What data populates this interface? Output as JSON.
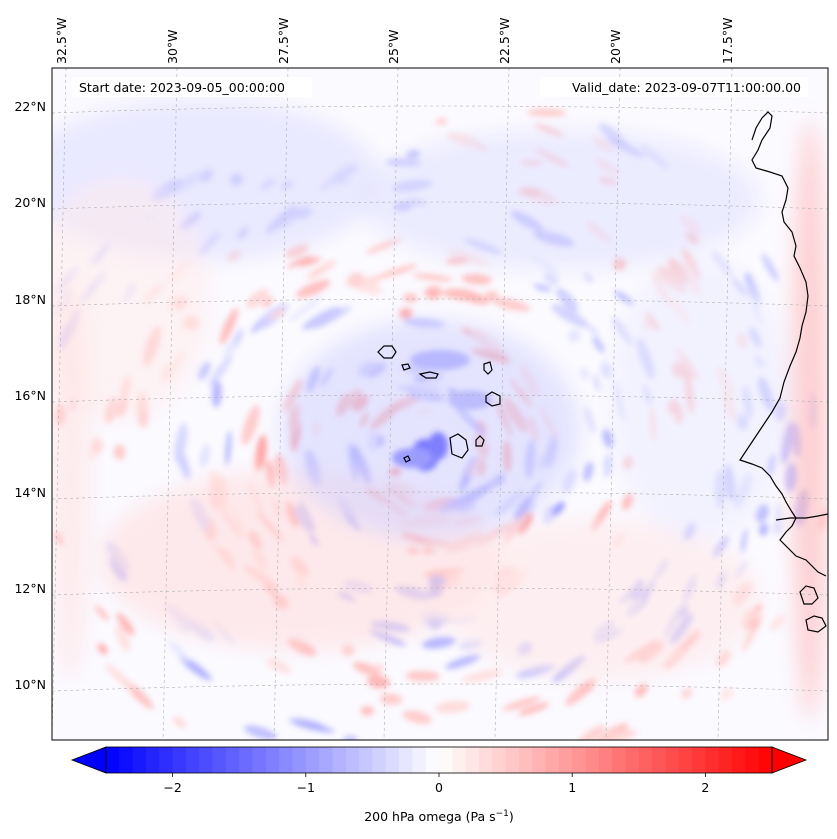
{
  "map": {
    "lon_ticks": [
      "32.5°W",
      "30°W",
      "27.5°W",
      "25°W",
      "22.5°W",
      "20°W",
      "17.5°W"
    ],
    "lat_ticks": [
      "22°N",
      "20°N",
      "18°N",
      "16°N",
      "14°N",
      "12°N",
      "10°N"
    ],
    "start_date": "Start date: 2023-09-05_00:00:00",
    "valid_date": "Valid_date: 2023-09-07T11:00:00.00",
    "field": "200 hPa omega",
    "colormap": "bwr",
    "colors": {
      "negative": "#0000ff",
      "zero": "#ffffff",
      "positive": "#ff0000",
      "coastline": "#000000",
      "gridline": "#b0b0b0"
    }
  },
  "colorbar": {
    "ticks": [
      "−2",
      "−1",
      "0",
      "1",
      "2"
    ],
    "tick_values": [
      -2,
      -1,
      0,
      1,
      2
    ],
    "vmin": -2.5,
    "vmax": 2.5,
    "label_main": "200 hPa omega (Pa s",
    "label_exp": "−1",
    "label_end": ")",
    "extend": "both"
  }
}
